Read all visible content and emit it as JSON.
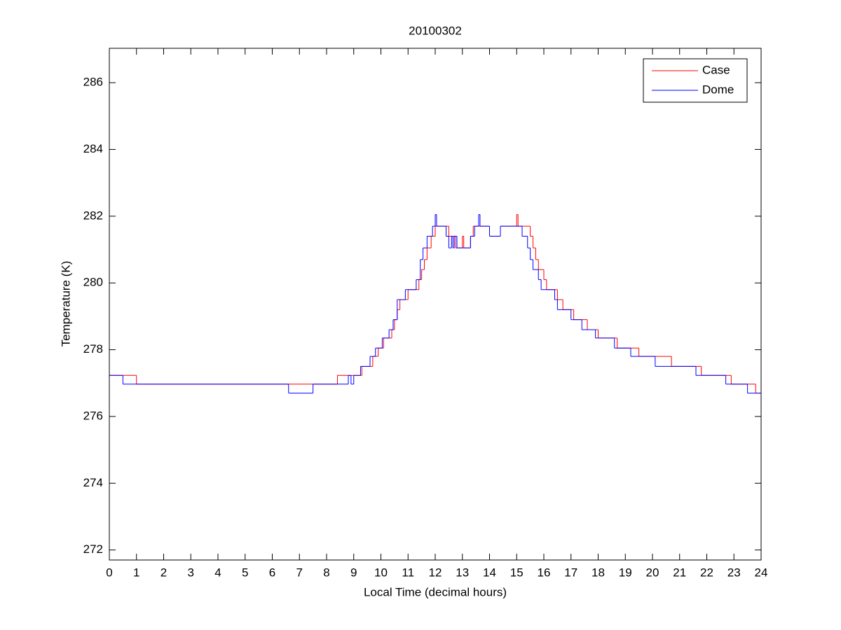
{
  "chart_data": {
    "type": "line",
    "step": "post",
    "title": "20100302",
    "xlabel": "Local Time (decimal hours)",
    "ylabel": "Temperature (K)",
    "xlim": [
      0,
      24
    ],
    "xticks": [
      0,
      1,
      2,
      3,
      4,
      5,
      6,
      7,
      8,
      9,
      10,
      11,
      12,
      13,
      14,
      15,
      16,
      17,
      18,
      19,
      20,
      21,
      22,
      23,
      24
    ],
    "ylim": [
      271.7,
      287.03
    ],
    "yticks": [
      272,
      274,
      276,
      278,
      280,
      282,
      284,
      286
    ],
    "legend": "northeast",
    "grid": false,
    "series": [
      {
        "name": "Case",
        "color": "#ff0000",
        "x": [
          0,
          1.0,
          8.4,
          9.3,
          9.7,
          9.9,
          10.1,
          10.4,
          10.5,
          10.6,
          10.7,
          11.0,
          11.4,
          11.5,
          11.6,
          11.7,
          11.85,
          12.0,
          12.5,
          12.75,
          13.0,
          13.05,
          13.3,
          13.4,
          14.0,
          14.4,
          15.0,
          15.05,
          15.5,
          15.6,
          15.7,
          15.8,
          16.0,
          16.1,
          16.5,
          16.7,
          17.1,
          17.6,
          18.0,
          18.7,
          19.5,
          20.7,
          21.8,
          22.9,
          23.8,
          24
        ],
        "values": [
          277.23,
          276.97,
          277.23,
          277.5,
          277.8,
          278.05,
          278.35,
          278.6,
          278.9,
          279.2,
          279.5,
          279.8,
          280.1,
          280.4,
          280.7,
          281.05,
          281.4,
          281.7,
          281.4,
          281.05,
          281.4,
          281.05,
          281.4,
          281.7,
          281.4,
          281.7,
          282.05,
          281.7,
          281.4,
          281.05,
          280.7,
          280.4,
          280.1,
          279.8,
          279.5,
          279.2,
          278.9,
          278.6,
          278.35,
          278.05,
          277.8,
          277.5,
          277.23,
          276.97,
          276.7,
          276.7
        ]
      },
      {
        "name": "Dome",
        "color": "#0000ff",
        "x": [
          0,
          0.5,
          6.6,
          7.5,
          8.8,
          8.9,
          9.0,
          9.25,
          9.6,
          9.8,
          10.05,
          10.3,
          10.45,
          10.6,
          10.9,
          11.3,
          11.45,
          11.55,
          11.7,
          11.9,
          12.0,
          12.05,
          12.4,
          12.5,
          12.6,
          12.65,
          12.7,
          12.8,
          13.3,
          13.45,
          13.6,
          13.65,
          14.0,
          14.4,
          15.2,
          15.4,
          15.5,
          15.6,
          15.8,
          15.9,
          16.4,
          16.5,
          17.0,
          17.4,
          17.9,
          18.6,
          19.2,
          20.1,
          21.6,
          22.7,
          23.5,
          24
        ],
        "values": [
          277.23,
          276.97,
          276.7,
          276.97,
          277.23,
          276.97,
          277.23,
          277.5,
          277.8,
          278.05,
          278.35,
          278.6,
          278.9,
          279.5,
          279.8,
          280.1,
          280.7,
          281.05,
          281.4,
          281.7,
          282.05,
          281.7,
          281.4,
          281.05,
          281.4,
          281.05,
          281.4,
          281.05,
          281.4,
          281.7,
          282.05,
          281.7,
          281.4,
          281.7,
          281.4,
          281.05,
          280.7,
          280.4,
          280.1,
          279.8,
          279.5,
          279.2,
          278.9,
          278.6,
          278.35,
          278.05,
          277.8,
          277.5,
          277.23,
          276.97,
          276.7,
          276.7
        ]
      }
    ]
  }
}
